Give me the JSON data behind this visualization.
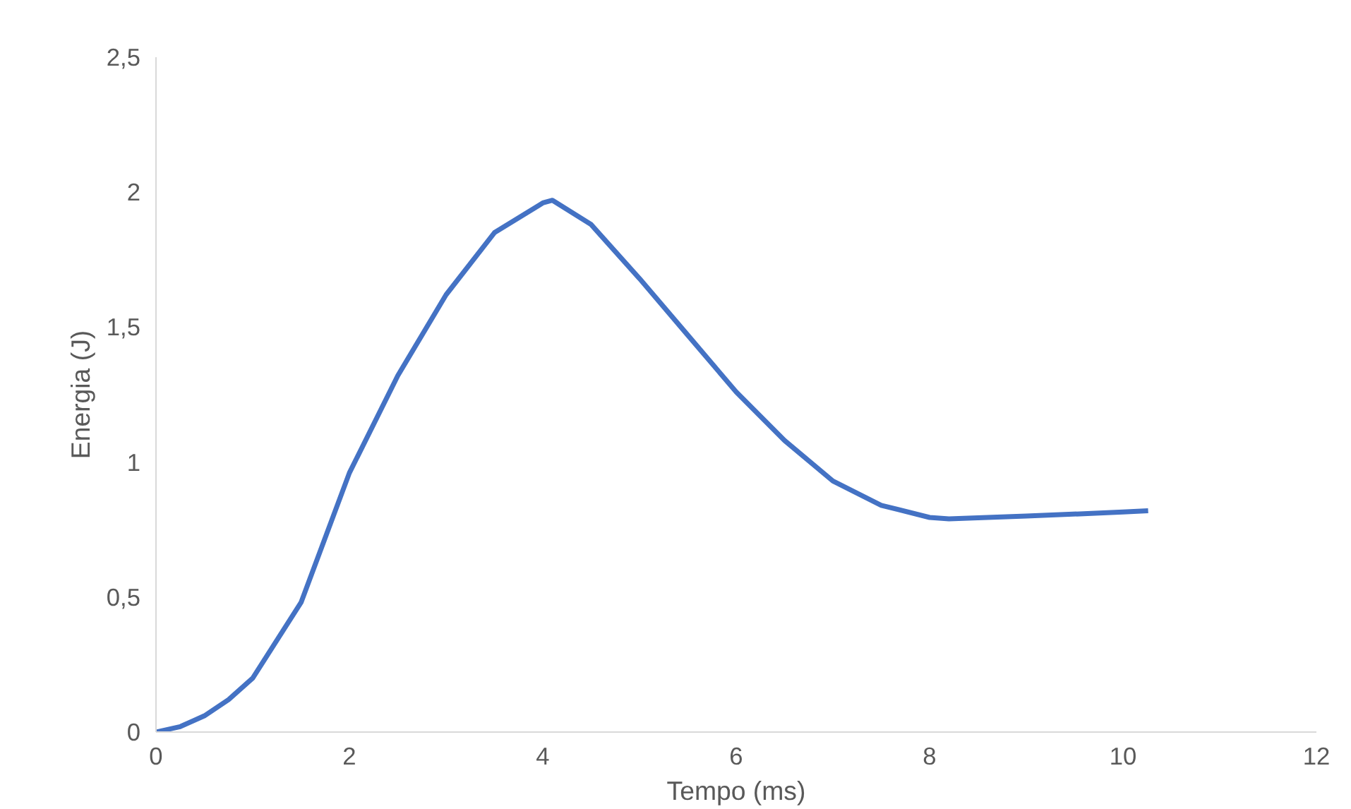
{
  "chart_data": {
    "type": "line",
    "xlabel": "Tempo (ms)",
    "ylabel": "Energia (J)",
    "x": [
      0,
      0.25,
      0.5,
      0.75,
      1,
      1.5,
      2,
      2.5,
      3,
      3.5,
      4,
      4.1,
      4.5,
      5,
      5.5,
      6,
      6.5,
      7,
      7.5,
      8,
      8.2,
      9,
      10,
      10.26
    ],
    "series": [
      {
        "color": "#4472c4",
        "values": [
          0,
          0.02,
          0.06,
          0.12,
          0.2,
          0.48,
          0.96,
          1.32,
          1.62,
          1.85,
          1.96,
          1.97,
          1.88,
          1.68,
          1.47,
          1.26,
          1.08,
          0.93,
          0.84,
          0.795,
          0.79,
          0.8,
          0.815,
          0.82
        ]
      }
    ],
    "xlim": [
      0,
      12
    ],
    "ylim": [
      0,
      2.5
    ],
    "xticks": [
      0,
      2,
      4,
      6,
      8,
      10,
      12
    ],
    "yticks": [
      0,
      {
        "value": 0.5,
        "label": "0,5"
      },
      1,
      {
        "value": 1.5,
        "label": "1,5"
      },
      2,
      {
        "value": 2.5,
        "label": "2,5"
      }
    ],
    "grid": false,
    "line_style": "solid",
    "marker": "none"
  }
}
